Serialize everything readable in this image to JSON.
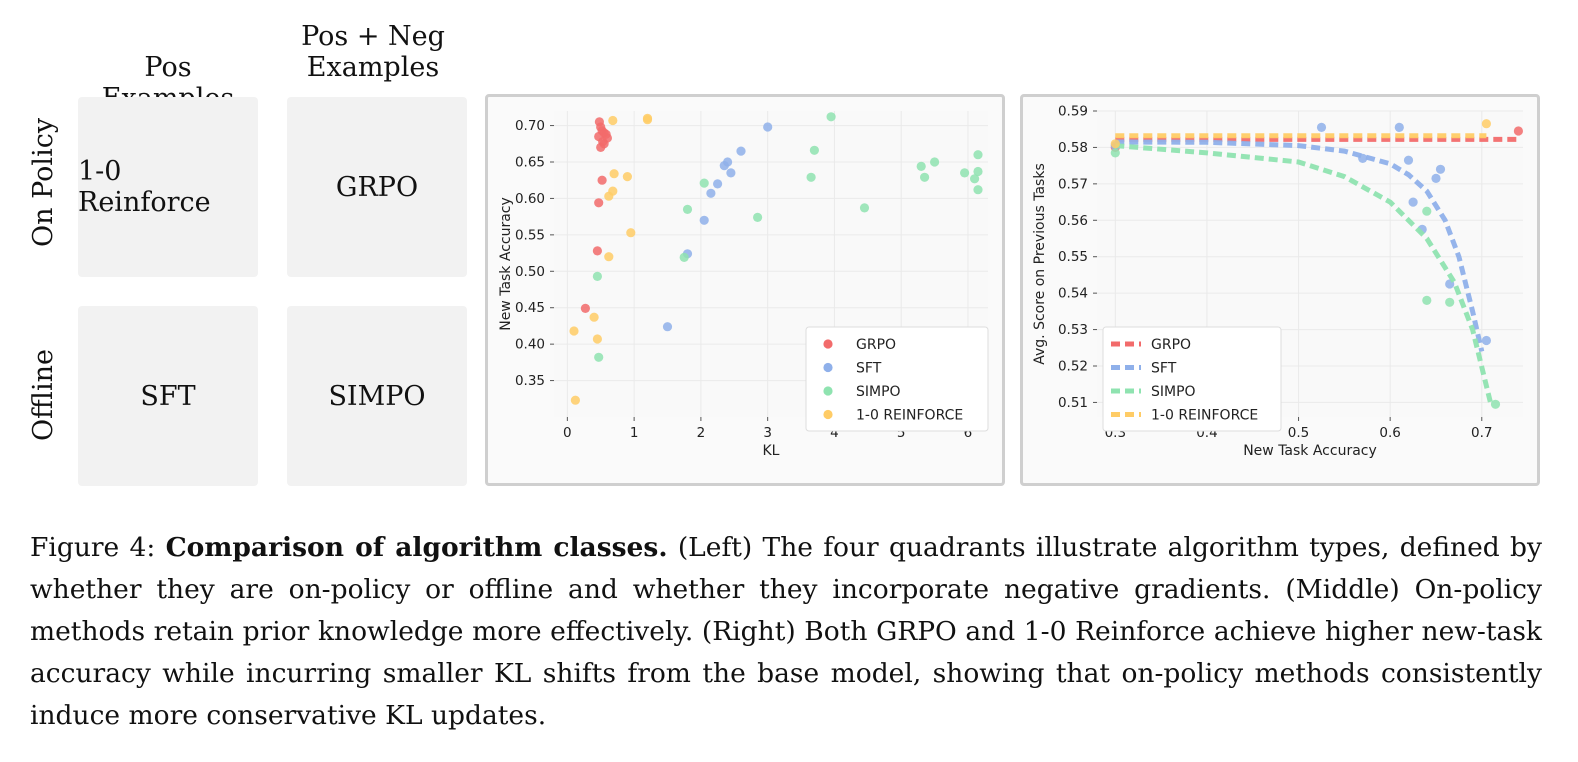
{
  "quadrants": {
    "col_heads": [
      "Pos Examples",
      "Pos + Neg",
      "Examples"
    ],
    "row_heads": [
      "On Policy",
      "Offline"
    ],
    "cells": [
      "1-0 Reinforce",
      "GRPO",
      "SFT",
      "SIMPO"
    ]
  },
  "colors": {
    "GRPO": "#f26b6b",
    "SFT": "#8fb0ea",
    "SIMPO": "#8fe3b0",
    "1-0 REINFORCE": "#ffcc66"
  },
  "chart_data": [
    {
      "type": "scatter",
      "xlabel": "KL",
      "ylabel": "New Task Accuracy",
      "xlim": [
        -0.2,
        6.3
      ],
      "ylim": [
        0.3,
        0.72
      ],
      "xticks": [
        "0",
        "1",
        "2",
        "3",
        "4",
        "5",
        "6"
      ],
      "yticks": [
        "0.35",
        "0.40",
        "0.45",
        "0.50",
        "0.55",
        "0.60",
        "0.65",
        "0.70"
      ],
      "legend": "bottom-right",
      "grid": true,
      "series": [
        {
          "name": "GRPO",
          "points": [
            [
              0.48,
              0.705
            ],
            [
              0.5,
              0.698
            ],
            [
              0.52,
              0.693
            ],
            [
              0.55,
              0.69
            ],
            [
              0.47,
              0.685
            ],
            [
              0.58,
              0.688
            ],
            [
              0.6,
              0.683
            ],
            [
              0.53,
              0.678
            ],
            [
              0.5,
              0.67
            ],
            [
              0.55,
              0.675
            ],
            [
              0.52,
              0.625
            ],
            [
              0.47,
              0.594
            ],
            [
              0.45,
              0.528
            ],
            [
              0.27,
              0.449
            ]
          ]
        },
        {
          "name": "SFT",
          "points": [
            [
              3.0,
              0.698
            ],
            [
              2.6,
              0.665
            ],
            [
              2.4,
              0.65
            ],
            [
              2.35,
              0.645
            ],
            [
              2.45,
              0.635
            ],
            [
              2.25,
              0.62
            ],
            [
              2.15,
              0.607
            ],
            [
              2.05,
              0.57
            ],
            [
              1.8,
              0.524
            ],
            [
              1.5,
              0.424
            ]
          ]
        },
        {
          "name": "SIMPO",
          "points": [
            [
              3.95,
              0.712
            ],
            [
              3.7,
              0.666
            ],
            [
              3.65,
              0.629
            ],
            [
              6.15,
              0.66
            ],
            [
              6.15,
              0.637
            ],
            [
              6.1,
              0.627
            ],
            [
              6.15,
              0.612
            ],
            [
              5.95,
              0.635
            ],
            [
              5.5,
              0.65
            ],
            [
              5.3,
              0.644
            ],
            [
              5.35,
              0.629
            ],
            [
              4.45,
              0.587
            ],
            [
              2.85,
              0.574
            ],
            [
              2.05,
              0.621
            ],
            [
              1.8,
              0.585
            ],
            [
              1.75,
              0.519
            ],
            [
              0.45,
              0.493
            ],
            [
              0.47,
              0.382
            ]
          ]
        },
        {
          "name": "1-0 REINFORCE",
          "points": [
            [
              1.2,
              0.71
            ],
            [
              1.2,
              0.708
            ],
            [
              0.68,
              0.707
            ],
            [
              0.7,
              0.634
            ],
            [
              0.9,
              0.63
            ],
            [
              0.68,
              0.61
            ],
            [
              0.62,
              0.603
            ],
            [
              0.95,
              0.553
            ],
            [
              0.62,
              0.52
            ],
            [
              0.4,
              0.437
            ],
            [
              0.1,
              0.418
            ],
            [
              0.45,
              0.407
            ],
            [
              0.12,
              0.323
            ]
          ]
        }
      ]
    },
    {
      "type": "line",
      "xlabel": "New Task Accuracy",
      "ylabel": "Avg. Score on Previous Tasks",
      "xlim": [
        0.28,
        0.745
      ],
      "ylim": [
        0.506,
        0.59
      ],
      "xticks": [
        "0.3",
        "0.4",
        "0.5",
        "0.6",
        "0.7"
      ],
      "yticks": [
        "0.51",
        "0.52",
        "0.53",
        "0.54",
        "0.55",
        "0.56",
        "0.57",
        "0.58",
        "0.59"
      ],
      "legend": "bottom-left",
      "grid": true,
      "series": [
        {
          "name": "GRPO",
          "line": [
            [
              0.3,
              0.5822
            ],
            [
              0.74,
              0.5822
            ]
          ],
          "points": [
            [
              0.3,
              0.58
            ],
            [
              0.74,
              0.5845
            ]
          ]
        },
        {
          "name": "SFT",
          "line": [
            [
              0.3,
              0.5815
            ],
            [
              0.4,
              0.5814
            ],
            [
              0.5,
              0.5805
            ],
            [
              0.55,
              0.579
            ],
            [
              0.6,
              0.5755
            ],
            [
              0.62,
              0.5725
            ],
            [
              0.64,
              0.568
            ],
            [
              0.66,
              0.56
            ],
            [
              0.675,
              0.55
            ],
            [
              0.69,
              0.535
            ],
            [
              0.7,
              0.524
            ]
          ],
          "points": [
            [
              0.3,
              0.5805
            ],
            [
              0.525,
              0.5855
            ],
            [
              0.61,
              0.5855
            ],
            [
              0.57,
              0.577
            ],
            [
              0.62,
              0.5765
            ],
            [
              0.655,
              0.574
            ],
            [
              0.65,
              0.5715
            ],
            [
              0.625,
              0.565
            ],
            [
              0.635,
              0.5575
            ],
            [
              0.665,
              0.5425
            ],
            [
              0.705,
              0.527
            ]
          ]
        },
        {
          "name": "SIMPO",
          "line": [
            [
              0.3,
              0.5805
            ],
            [
              0.4,
              0.5785
            ],
            [
              0.5,
              0.576
            ],
            [
              0.55,
              0.572
            ],
            [
              0.6,
              0.565
            ],
            [
              0.64,
              0.555
            ],
            [
              0.67,
              0.543
            ],
            [
              0.69,
              0.53
            ],
            [
              0.71,
              0.5095
            ]
          ],
          "points": [
            [
              0.3,
              0.5785
            ],
            [
              0.64,
              0.5625
            ],
            [
              0.665,
              0.5375
            ],
            [
              0.64,
              0.538
            ],
            [
              0.715,
              0.5095
            ]
          ]
        },
        {
          "name": "1-0 REINFORCE",
          "line": [
            [
              0.3,
              0.5832
            ],
            [
              0.705,
              0.5832
            ]
          ],
          "points": [
            [
              0.3,
              0.581
            ],
            [
              0.705,
              0.5865
            ]
          ]
        }
      ]
    }
  ],
  "caption": {
    "label": "Figure 4:",
    "title": "Comparison of algorithm classes.",
    "text": " (Left) The four quadrants illustrate algorithm types, defined by whether they are on-policy or offline and whether they incorporate negative gradients. (Middle) On-policy methods retain prior knowledge more effectively. (Right) Both GRPO and 1-0 Reinforce achieve higher new-task accuracy while incurring smaller KL shifts from the base model, showing that on-policy methods consistently induce more conservative KL updates."
  }
}
